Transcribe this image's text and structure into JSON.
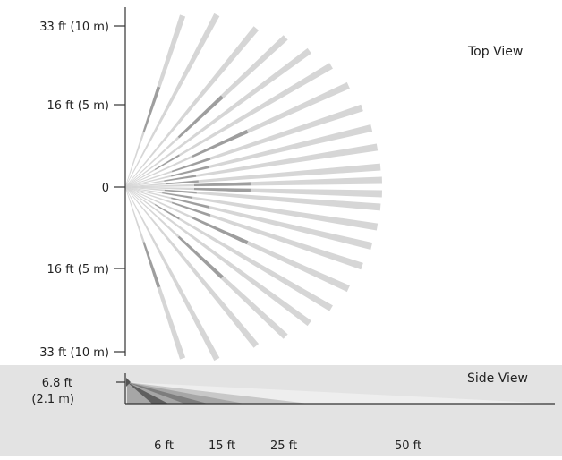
{
  "top_view": {
    "title": "Top View",
    "y_axis": {
      "labels": [
        "33 ft (10 m)",
        "16 ft (5 m)",
        "0",
        "16 ft (5 m)",
        "33 ft (10 m)"
      ]
    },
    "colors": {
      "beam": "#d6d6d6",
      "near_zone": "#9e9e9e",
      "axis": "#333333"
    }
  },
  "side_view": {
    "title": "Side View",
    "height_label_line1": "6.8 ft",
    "height_label_line2": "(2.1 m)",
    "x_labels": [
      "6 ft",
      "15 ft",
      "25 ft",
      "50 ft"
    ],
    "colors": {
      "panel": "#e3e3e3",
      "beam_far": "#eeeeee",
      "beam_mid": "#c8c8c8",
      "beam_near": "#a6a6a6",
      "beam_closest": "#6f6f6f",
      "axis": "#333333"
    }
  }
}
